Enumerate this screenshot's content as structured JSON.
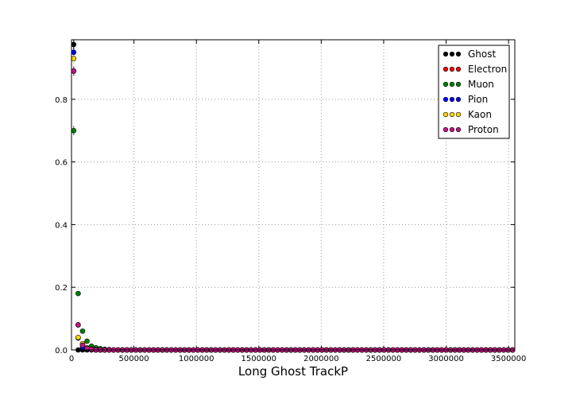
{
  "chart_data": {
    "type": "scatter",
    "title": "",
    "xlabel": "Long Ghost TrackP",
    "ylabel": "",
    "xlim": [
      0,
      3550000
    ],
    "ylim": [
      0,
      0.99
    ],
    "grid": true,
    "legend_position": "top-right",
    "x_ticks": [
      0,
      500000,
      1000000,
      1500000,
      2000000,
      2500000,
      3000000,
      3500000
    ],
    "x_tick_labels": [
      "0",
      "500000",
      "1000000",
      "1500000",
      "2000000",
      "2500000",
      "3000000",
      "3500000"
    ],
    "y_ticks": [
      0,
      0.2,
      0.4,
      0.6,
      0.8
    ],
    "y_tick_labels": [
      "0.0",
      "0.2",
      "0.4",
      "0.6",
      "0.8"
    ],
    "bin_centers": [
      17750,
      53250,
      88750,
      124250,
      159750,
      195250,
      230750,
      266250,
      301750,
      337250
    ],
    "zero_tail": {
      "start": 372750,
      "end": 3532250,
      "step": 35500
    },
    "series": [
      {
        "name": "Ghost",
        "color": "#000000",
        "values": [
          0.975,
          0.0,
          0.0,
          0.0,
          0.0,
          0.0,
          0.0,
          0.0,
          0.0,
          0.0
        ]
      },
      {
        "name": "Electron",
        "color": "#ff0000",
        "values": [
          0.89,
          0.08,
          0.015,
          0.005,
          0.002,
          0.0,
          0.0,
          0.0,
          0.0,
          0.0
        ]
      },
      {
        "name": "Muon",
        "color": "#008000",
        "values": [
          0.7,
          0.18,
          0.06,
          0.028,
          0.012,
          0.007,
          0.004,
          0.002,
          0.001,
          0.0
        ]
      },
      {
        "name": "Pion",
        "color": "#0000ff",
        "values": [
          0.95,
          0.038,
          0.008,
          0.003,
          0.001,
          0.0,
          0.0,
          0.0,
          0.0,
          0.0
        ]
      },
      {
        "name": "Kaon",
        "color": "#ffd700",
        "values": [
          0.93,
          0.04,
          0.02,
          0.007,
          0.003,
          0.001,
          0.0,
          0.0,
          0.0,
          0.0
        ]
      },
      {
        "name": "Proton",
        "color": "#c71585",
        "values": [
          0.89,
          0.08,
          0.015,
          0.005,
          0.002,
          0.0,
          0.0,
          0.0,
          0.0,
          0.0
        ]
      }
    ]
  }
}
